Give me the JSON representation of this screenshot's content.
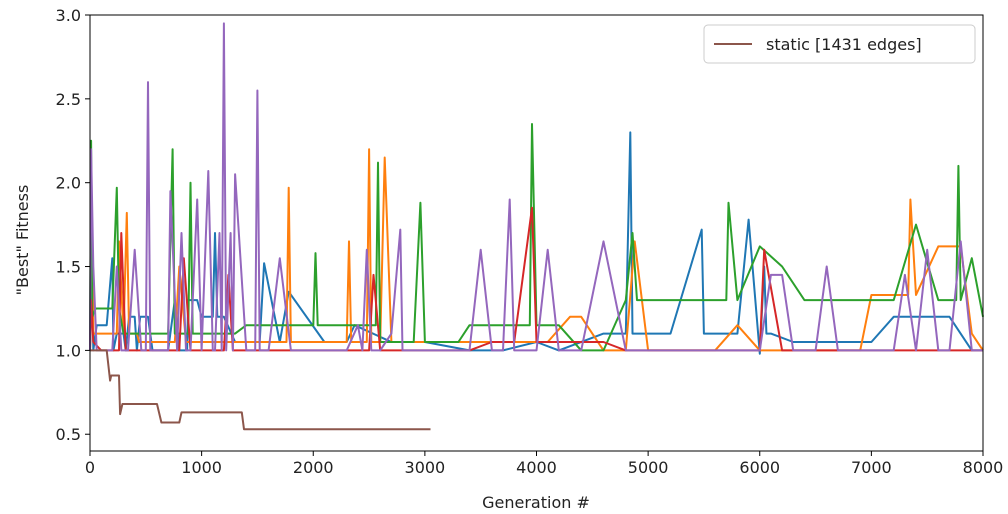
{
  "chart_data": {
    "type": "line",
    "title": "",
    "xlabel": "Generation #",
    "ylabel": "\"Best\" Fitness",
    "xlim": [
      0,
      8000
    ],
    "ylim": [
      0.4,
      3.0
    ],
    "xticks": [
      "0",
      "1000",
      "2000",
      "3000",
      "4000",
      "5000",
      "6000",
      "7000",
      "8000"
    ],
    "yticks": [
      "0.5",
      "1.0",
      "1.5",
      "2.0",
      "2.5",
      "3.0"
    ],
    "grid": false,
    "legend_placement": "top-right",
    "legend": [
      {
        "label": "static [1431 edges]",
        "color": "#8c564b"
      }
    ],
    "series": [
      {
        "color": "#1f77b4",
        "x": [
          0,
          20,
          30,
          60,
          90,
          150,
          200,
          210,
          240,
          300,
          320,
          350,
          400,
          420,
          450,
          520,
          560,
          700,
          760,
          800,
          870,
          880,
          960,
          1000,
          1100,
          1120,
          1140,
          1200,
          1300,
          1520,
          1560,
          1700,
          1780,
          2100,
          2300,
          2370,
          2700,
          3000,
          3400,
          3700,
          4000,
          4200,
          4600,
          4800,
          4840,
          4860,
          4900,
          5200,
          5480,
          5500,
          5520,
          5700,
          5800,
          5900,
          6000,
          6040,
          6060,
          6100,
          6300,
          6700,
          7000,
          7200,
          7400,
          7500,
          7700,
          7900,
          8000
        ],
        "y": [
          1.0,
          1.5,
          1.0,
          1.15,
          1.15,
          1.15,
          1.55,
          1.0,
          1.1,
          1.1,
          1.0,
          1.2,
          1.2,
          1.0,
          1.2,
          1.2,
          1.0,
          1.0,
          1.3,
          1.0,
          1.0,
          1.3,
          1.3,
          1.2,
          1.2,
          1.7,
          1.2,
          1.2,
          1.05,
          1.05,
          1.52,
          1.05,
          1.35,
          1.05,
          1.05,
          1.15,
          1.05,
          1.05,
          1.0,
          1.0,
          1.05,
          1.0,
          1.1,
          1.1,
          2.3,
          1.1,
          1.1,
          1.1,
          1.72,
          1.1,
          1.1,
          1.1,
          1.1,
          1.78,
          0.98,
          1.5,
          1.1,
          1.1,
          1.05,
          1.05,
          1.05,
          1.2,
          1.2,
          1.2,
          1.2,
          1.0,
          1.0
        ]
      },
      {
        "color": "#ff7f0e",
        "x": [
          0,
          20,
          30,
          100,
          150,
          200,
          240,
          260,
          300,
          330,
          350,
          420,
          440,
          500,
          600,
          640,
          700,
          760,
          800,
          860,
          880,
          1000,
          1200,
          1300,
          1340,
          1400,
          1500,
          1540,
          1600,
          1760,
          1780,
          1800,
          2000,
          2300,
          2320,
          2340,
          2480,
          2500,
          2520,
          2600,
          2640,
          2700,
          3000,
          3360,
          3400,
          3800,
          3900,
          4000,
          4100,
          4300,
          4400,
          4600,
          4800,
          4880,
          5000,
          5200,
          5400,
          5600,
          5800,
          6000,
          6200,
          6400,
          6600,
          6800,
          6900,
          7000,
          7200,
          7330,
          7350,
          7400,
          7600,
          7800,
          7900,
          8000
        ],
        "y": [
          1.0,
          1.7,
          1.1,
          1.1,
          1.1,
          1.1,
          1.1,
          1.65,
          1.1,
          1.82,
          1.1,
          1.1,
          1.05,
          1.05,
          1.05,
          1.05,
          1.05,
          1.05,
          1.5,
          1.05,
          1.05,
          1.05,
          1.05,
          1.05,
          1.05,
          1.05,
          1.05,
          1.05,
          1.05,
          1.05,
          1.97,
          1.05,
          1.05,
          1.05,
          1.65,
          1.05,
          1.05,
          2.2,
          1.05,
          1.05,
          2.15,
          1.05,
          1.05,
          1.05,
          1.05,
          1.05,
          1.05,
          1.05,
          1.05,
          1.2,
          1.2,
          1.0,
          1.0,
          1.65,
          1.0,
          1.0,
          1.0,
          1.0,
          1.15,
          1.0,
          1.0,
          1.0,
          1.0,
          1.0,
          1.0,
          1.33,
          1.33,
          1.33,
          1.9,
          1.33,
          1.62,
          1.62,
          1.1,
          1.0
        ]
      },
      {
        "color": "#2ca02c",
        "x": [
          0,
          10,
          20,
          50,
          100,
          150,
          200,
          240,
          260,
          300,
          400,
          500,
          700,
          740,
          760,
          880,
          900,
          920,
          1000,
          1200,
          1300,
          1400,
          1500,
          1600,
          1700,
          1800,
          2000,
          2020,
          2040,
          2300,
          2560,
          2580,
          2600,
          2900,
          2960,
          3000,
          3300,
          3400,
          3600,
          3800,
          3940,
          3960,
          4000,
          4200,
          4400,
          4600,
          4800,
          4860,
          4900,
          5200,
          5400,
          5700,
          5720,
          5800,
          6000,
          6200,
          6400,
          6600,
          6800,
          6900,
          7000,
          7200,
          7400,
          7600,
          7760,
          7780,
          7800,
          7900,
          8000
        ],
        "y": [
          1.0,
          2.25,
          1.2,
          1.25,
          1.25,
          1.25,
          1.25,
          1.97,
          1.25,
          1.1,
          1.1,
          1.1,
          1.1,
          2.2,
          1.1,
          1.1,
          2.0,
          1.1,
          1.1,
          1.1,
          1.1,
          1.15,
          1.15,
          1.15,
          1.15,
          1.15,
          1.15,
          1.58,
          1.15,
          1.15,
          1.15,
          2.12,
          1.05,
          1.05,
          1.88,
          1.05,
          1.05,
          1.15,
          1.15,
          1.15,
          1.15,
          2.35,
          1.15,
          1.15,
          1.0,
          1.0,
          1.3,
          1.7,
          1.3,
          1.3,
          1.3,
          1.3,
          1.88,
          1.3,
          1.62,
          1.5,
          1.3,
          1.3,
          1.3,
          1.3,
          1.3,
          1.3,
          1.75,
          1.3,
          1.3,
          2.1,
          1.3,
          1.55,
          1.2
        ]
      },
      {
        "color": "#d62728",
        "x": [
          0,
          10,
          30,
          100,
          160,
          260,
          280,
          320,
          360,
          400,
          500,
          600,
          800,
          840,
          900,
          1000,
          1100,
          1160,
          1200,
          1240,
          1280,
          1300,
          1400,
          1600,
          1800,
          2000,
          2300,
          2500,
          2540,
          2600,
          2800,
          3000,
          3200,
          3400,
          3600,
          3800,
          3960,
          4000,
          4200,
          4400,
          4600,
          4800,
          5000,
          5200,
          5400,
          5600,
          5800,
          6000,
          6040,
          6200,
          6400,
          6600,
          6800,
          7000,
          7200,
          7400,
          7600,
          7800,
          8000
        ],
        "y": [
          1.0,
          1.3,
          1.05,
          1.0,
          1.0,
          1.0,
          1.7,
          1.0,
          1.0,
          1.0,
          1.0,
          1.0,
          1.0,
          1.55,
          1.0,
          1.0,
          1.0,
          1.0,
          1.0,
          1.45,
          1.0,
          1.0,
          1.0,
          1.0,
          1.0,
          1.0,
          1.0,
          1.0,
          1.45,
          1.0,
          1.0,
          1.0,
          1.0,
          1.0,
          1.05,
          1.05,
          1.85,
          1.05,
          1.05,
          1.05,
          1.05,
          1.0,
          1.0,
          1.0,
          1.0,
          1.0,
          1.0,
          1.0,
          1.6,
          1.0,
          1.0,
          1.0,
          1.0,
          1.0,
          1.0,
          1.0,
          1.0,
          1.0,
          1.0
        ]
      },
      {
        "color": "#9467bd",
        "x": [
          0,
          10,
          30,
          60,
          100,
          200,
          240,
          280,
          320,
          340,
          400,
          460,
          500,
          520,
          540,
          600,
          700,
          720,
          780,
          820,
          860,
          900,
          960,
          1000,
          1060,
          1100,
          1120,
          1160,
          1180,
          1200,
          1220,
          1260,
          1280,
          1300,
          1400,
          1480,
          1500,
          1520,
          1600,
          1700,
          1800,
          2000,
          2300,
          2400,
          2440,
          2480,
          2520,
          2600,
          2700,
          2780,
          2800,
          2900,
          3000,
          3200,
          3300,
          3400,
          3500,
          3600,
          3700,
          3760,
          3800,
          3900,
          4000,
          4100,
          4200,
          4400,
          4600,
          4800,
          5000,
          5200,
          5300,
          5400,
          5500,
          5600,
          5700,
          5800,
          5900,
          6000,
          6100,
          6200,
          6300,
          6400,
          6500,
          6600,
          6700,
          6800,
          6900,
          7000,
          7100,
          7200,
          7300,
          7400,
          7500,
          7600,
          7700,
          7800,
          7900,
          8000
        ],
        "y": [
          1.0,
          2.2,
          1.5,
          1.0,
          1.0,
          1.0,
          1.5,
          1.0,
          1.0,
          1.0,
          1.6,
          1.0,
          1.0,
          2.6,
          1.0,
          1.0,
          1.0,
          1.95,
          1.0,
          1.7,
          1.0,
          1.0,
          1.9,
          1.0,
          2.07,
          1.0,
          1.0,
          1.7,
          1.0,
          2.95,
          1.0,
          1.7,
          1.0,
          2.05,
          1.0,
          1.0,
          2.55,
          1.0,
          1.0,
          1.55,
          1.0,
          1.0,
          1.0,
          1.15,
          1.0,
          1.6,
          1.0,
          1.0,
          1.1,
          1.72,
          1.0,
          1.0,
          1.0,
          1.0,
          1.0,
          1.0,
          1.6,
          1.0,
          1.0,
          1.9,
          1.0,
          1.0,
          1.0,
          1.6,
          1.0,
          1.0,
          1.65,
          1.0,
          1.0,
          1.0,
          1.0,
          1.0,
          1.0,
          1.0,
          1.0,
          1.0,
          1.0,
          1.0,
          1.45,
          1.45,
          1.0,
          1.0,
          1.0,
          1.5,
          1.0,
          1.0,
          1.0,
          1.0,
          1.0,
          1.0,
          1.45,
          1.0,
          1.6,
          1.0,
          1.0,
          1.65,
          1.0,
          1.0
        ]
      },
      {
        "name": "static [1431 edges]",
        "color": "#8c564b",
        "x": [
          0,
          150,
          180,
          190,
          260,
          270,
          290,
          600,
          640,
          800,
          820,
          1000,
          1360,
          1380,
          3050
        ],
        "y": [
          1.0,
          1.0,
          0.82,
          0.85,
          0.85,
          0.62,
          0.68,
          0.68,
          0.57,
          0.57,
          0.63,
          0.63,
          0.63,
          0.53,
          0.53
        ]
      }
    ]
  }
}
